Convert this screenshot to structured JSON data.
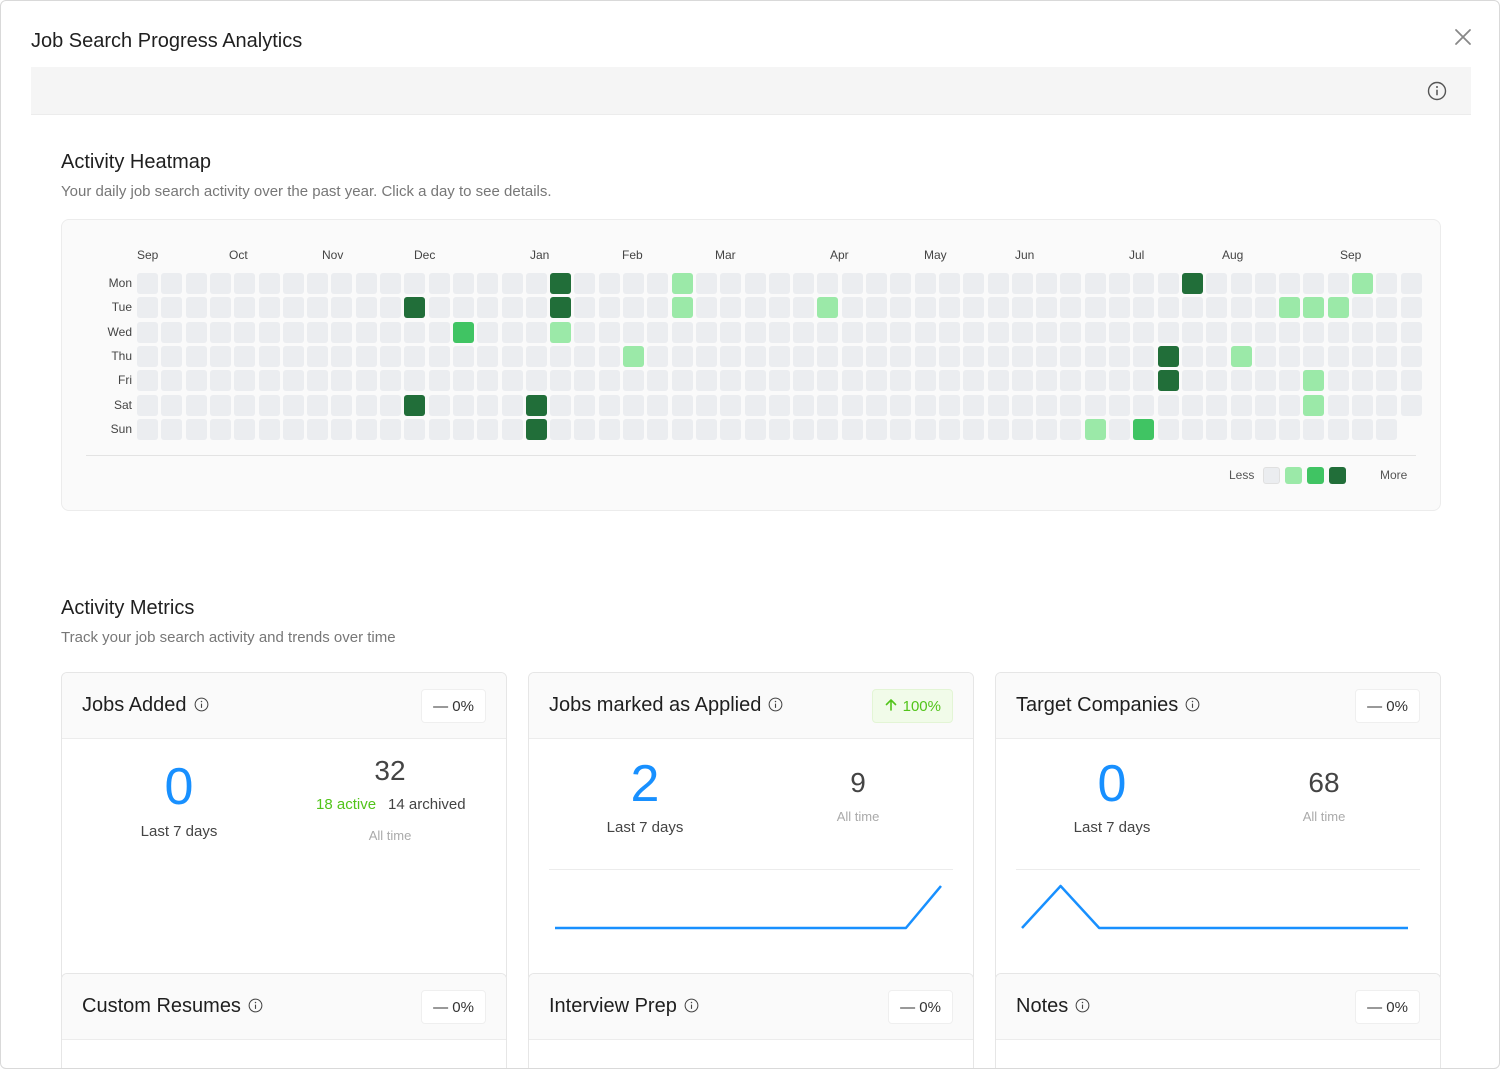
{
  "modal": {
    "title": "Job Search Progress Analytics"
  },
  "heatmap": {
    "title": "Activity Heatmap",
    "subtitle": "Your daily job search activity over the past year. Click a day to see details.",
    "months": [
      "Sep",
      "Oct",
      "Nov",
      "Dec",
      "Jan",
      "Feb",
      "Mar",
      "Apr",
      "May",
      "Jun",
      "Jul",
      "Aug",
      "Sep"
    ],
    "days": [
      "Mon",
      "Tue",
      "Wed",
      "Thu",
      "Fri",
      "Sat",
      "Sun"
    ],
    "active_cells": [
      {
        "week": 17,
        "day": 0,
        "level": 3
      },
      {
        "week": 22,
        "day": 0,
        "level": 1
      },
      {
        "week": 43,
        "day": 0,
        "level": 3
      },
      {
        "week": 50,
        "day": 0,
        "level": 1
      },
      {
        "week": 11,
        "day": 1,
        "level": 3
      },
      {
        "week": 17,
        "day": 1,
        "level": 3
      },
      {
        "week": 22,
        "day": 1,
        "level": 1
      },
      {
        "week": 28,
        "day": 1,
        "level": 1
      },
      {
        "week": 47,
        "day": 1,
        "level": 1
      },
      {
        "week": 48,
        "day": 1,
        "level": 1
      },
      {
        "week": 49,
        "day": 1,
        "level": 1
      },
      {
        "week": 13,
        "day": 2,
        "level": 2
      },
      {
        "week": 17,
        "day": 2,
        "level": 1
      },
      {
        "week": 20,
        "day": 3,
        "level": 1
      },
      {
        "week": 42,
        "day": 3,
        "level": 3
      },
      {
        "week": 45,
        "day": 3,
        "level": 1
      },
      {
        "week": 42,
        "day": 4,
        "level": 3
      },
      {
        "week": 48,
        "day": 4,
        "level": 1
      },
      {
        "week": 11,
        "day": 5,
        "level": 3
      },
      {
        "week": 16,
        "day": 5,
        "level": 3
      },
      {
        "week": 48,
        "day": 5,
        "level": 1
      },
      {
        "week": 16,
        "day": 6,
        "level": 3
      },
      {
        "week": 39,
        "day": 6,
        "level": 1
      },
      {
        "week": 41,
        "day": 6,
        "level": 2
      }
    ],
    "legend": {
      "less": "Less",
      "more": "More"
    },
    "colors": [
      "#ebedf0",
      "#9be9a8",
      "#40c463",
      "#216e39"
    ]
  },
  "metrics": {
    "title": "Activity Metrics",
    "subtitle": "Track your job search activity and trends over time",
    "jobs_added": {
      "title": "Jobs Added",
      "change": "— 0%",
      "last7": "0",
      "last7_label": "Last 7 days",
      "alltime": "32",
      "active": "18 active",
      "archived": "14 archived",
      "alltime_label": "All time"
    },
    "applied": {
      "title": "Jobs marked as Applied",
      "change": "100%",
      "last7": "2",
      "last7_label": "Last 7 days",
      "alltime": "9",
      "alltime_label": "All time",
      "trend": [
        0,
        0,
        0,
        0,
        0,
        0,
        0,
        0,
        0,
        0,
        0,
        1
      ]
    },
    "target_companies": {
      "title": "Target Companies",
      "change": "— 0%",
      "last7": "0",
      "last7_label": "Last 7 days",
      "alltime": "68",
      "alltime_label": "All time",
      "trend": [
        0,
        1,
        0,
        0,
        0,
        0,
        0,
        0,
        0,
        0,
        0
      ]
    },
    "custom_resumes": {
      "title": "Custom Resumes",
      "change": "— 0%"
    },
    "interview_prep": {
      "title": "Interview Prep",
      "change": "— 0%"
    },
    "notes": {
      "title": "Notes",
      "change": "— 0%"
    },
    "accent_color": "#1890ff",
    "positive_color": "#52c41a"
  }
}
